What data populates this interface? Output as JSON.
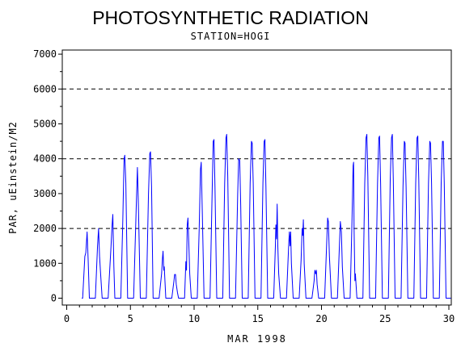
{
  "chart_data": {
    "type": "line",
    "title": "PHOTOSYNTHETIC RADIATION",
    "subtitle": "STATION=HOGI",
    "xlabel": "MAR 1998",
    "ylabel": "PAR, uEinstein/M2",
    "xlim": [
      0,
      30.3
    ],
    "ylim": [
      0,
      7000
    ],
    "x_ticks": [
      0,
      5,
      10,
      15,
      20,
      25,
      30
    ],
    "y_ticks": [
      0,
      1000,
      2000,
      3000,
      4000,
      5000,
      6000,
      7000
    ],
    "reference_lines": [
      2000,
      4000,
      6000
    ],
    "line_color": "#0000ff",
    "grid": "dashed horizontal reference lines at 2000, 4000, 6000",
    "daily_peaks": [
      {
        "day": 1,
        "profile": [
          [
            0.25,
            0
          ],
          [
            0.42,
            1200
          ],
          [
            0.5,
            1300
          ],
          [
            0.6,
            1900
          ],
          [
            0.68,
            1100
          ],
          [
            0.78,
            0
          ]
        ]
      },
      {
        "day": 2,
        "profile": [
          [
            0.25,
            0
          ],
          [
            0.42,
            1500
          ],
          [
            0.5,
            2000
          ],
          [
            0.58,
            1200
          ],
          [
            0.66,
            700
          ],
          [
            0.78,
            0
          ]
        ]
      },
      {
        "day": 3,
        "profile": [
          [
            0.25,
            0
          ],
          [
            0.48,
            1500
          ],
          [
            0.56,
            2100
          ],
          [
            0.62,
            2400
          ],
          [
            0.7,
            900
          ],
          [
            0.78,
            0
          ]
        ]
      },
      {
        "day": 4,
        "profile": [
          [
            0.25,
            0
          ],
          [
            0.4,
            2200
          ],
          [
            0.5,
            4000
          ],
          [
            0.56,
            4100
          ],
          [
            0.64,
            3300
          ],
          [
            0.78,
            0
          ]
        ]
      },
      {
        "day": 5,
        "profile": [
          [
            0.25,
            0
          ],
          [
            0.45,
            2500
          ],
          [
            0.55,
            3750
          ],
          [
            0.62,
            2800
          ],
          [
            0.78,
            0
          ]
        ]
      },
      {
        "day": 6,
        "profile": [
          [
            0.25,
            0
          ],
          [
            0.42,
            3000
          ],
          [
            0.52,
            4150
          ],
          [
            0.58,
            4200
          ],
          [
            0.66,
            3200
          ],
          [
            0.78,
            0
          ]
        ]
      },
      {
        "day": 7,
        "profile": [
          [
            0.25,
            0
          ],
          [
            0.45,
            700
          ],
          [
            0.52,
            1150
          ],
          [
            0.56,
            1350
          ],
          [
            0.62,
            800
          ],
          [
            0.66,
            900
          ],
          [
            0.78,
            0
          ]
        ]
      },
      {
        "day": 8,
        "profile": [
          [
            0.25,
            0
          ],
          [
            0.42,
            500
          ],
          [
            0.47,
            680
          ],
          [
            0.54,
            680
          ],
          [
            0.6,
            400
          ],
          [
            0.7,
            150
          ],
          [
            0.78,
            0
          ]
        ]
      },
      {
        "day": 9,
        "profile": [
          [
            0.25,
            0
          ],
          [
            0.35,
            1050
          ],
          [
            0.4,
            800
          ],
          [
            0.46,
            2100
          ],
          [
            0.52,
            2300
          ],
          [
            0.6,
            1400
          ],
          [
            0.66,
            700
          ],
          [
            0.78,
            0
          ]
        ]
      },
      {
        "day": 10,
        "profile": [
          [
            0.25,
            0
          ],
          [
            0.4,
            2000
          ],
          [
            0.5,
            3700
          ],
          [
            0.56,
            3900
          ],
          [
            0.64,
            2500
          ],
          [
            0.78,
            0
          ]
        ]
      },
      {
        "day": 11,
        "profile": [
          [
            0.25,
            0
          ],
          [
            0.4,
            2800
          ],
          [
            0.5,
            4500
          ],
          [
            0.56,
            4550
          ],
          [
            0.64,
            3200
          ],
          [
            0.78,
            0
          ]
        ]
      },
      {
        "day": 12,
        "profile": [
          [
            0.25,
            0
          ],
          [
            0.4,
            3300
          ],
          [
            0.5,
            4600
          ],
          [
            0.56,
            4700
          ],
          [
            0.64,
            3500
          ],
          [
            0.78,
            0
          ]
        ]
      },
      {
        "day": 13,
        "profile": [
          [
            0.25,
            0
          ],
          [
            0.42,
            3000
          ],
          [
            0.5,
            4000
          ],
          [
            0.58,
            3950
          ],
          [
            0.66,
            2700
          ],
          [
            0.78,
            0
          ]
        ]
      },
      {
        "day": 14,
        "profile": [
          [
            0.25,
            0
          ],
          [
            0.4,
            3300
          ],
          [
            0.5,
            4500
          ],
          [
            0.56,
            4450
          ],
          [
            0.64,
            3300
          ],
          [
            0.78,
            0
          ]
        ]
      },
      {
        "day": 15,
        "profile": [
          [
            0.25,
            0
          ],
          [
            0.4,
            3300
          ],
          [
            0.5,
            4500
          ],
          [
            0.56,
            4550
          ],
          [
            0.64,
            3200
          ],
          [
            0.78,
            0
          ]
        ]
      },
      {
        "day": 16,
        "profile": [
          [
            0.25,
            0
          ],
          [
            0.38,
            1500
          ],
          [
            0.42,
            2100
          ],
          [
            0.47,
            1700
          ],
          [
            0.52,
            2700
          ],
          [
            0.57,
            1500
          ],
          [
            0.64,
            700
          ],
          [
            0.78,
            0
          ]
        ]
      },
      {
        "day": 17,
        "profile": [
          [
            0.25,
            0
          ],
          [
            0.42,
            1500
          ],
          [
            0.48,
            1900
          ],
          [
            0.53,
            1500
          ],
          [
            0.58,
            1900
          ],
          [
            0.64,
            1000
          ],
          [
            0.78,
            0
          ]
        ]
      },
      {
        "day": 18,
        "profile": [
          [
            0.25,
            0
          ],
          [
            0.4,
            1100
          ],
          [
            0.48,
            2000
          ],
          [
            0.53,
            1800
          ],
          [
            0.58,
            2250
          ],
          [
            0.64,
            1000
          ],
          [
            0.78,
            0
          ]
        ]
      },
      {
        "day": 19,
        "profile": [
          [
            0.25,
            0
          ],
          [
            0.42,
            500
          ],
          [
            0.48,
            800
          ],
          [
            0.54,
            700
          ],
          [
            0.6,
            800
          ],
          [
            0.66,
            400
          ],
          [
            0.78,
            0
          ]
        ]
      },
      {
        "day": 20,
        "profile": [
          [
            0.25,
            0
          ],
          [
            0.4,
            1500
          ],
          [
            0.48,
            2300
          ],
          [
            0.54,
            2200
          ],
          [
            0.62,
            1200
          ],
          [
            0.78,
            0
          ]
        ]
      },
      {
        "day": 21,
        "profile": [
          [
            0.25,
            0
          ],
          [
            0.4,
            1400
          ],
          [
            0.48,
            2200
          ],
          [
            0.56,
            1900
          ],
          [
            0.64,
            900
          ],
          [
            0.78,
            0
          ]
        ]
      },
      {
        "day": 22,
        "profile": [
          [
            0.25,
            0
          ],
          [
            0.38,
            2000
          ],
          [
            0.48,
            3800
          ],
          [
            0.52,
            3900
          ],
          [
            0.56,
            2000
          ],
          [
            0.62,
            500
          ],
          [
            0.66,
            700
          ],
          [
            0.78,
            0
          ]
        ]
      },
      {
        "day": 23,
        "profile": [
          [
            0.25,
            0
          ],
          [
            0.4,
            3300
          ],
          [
            0.5,
            4600
          ],
          [
            0.56,
            4700
          ],
          [
            0.64,
            3500
          ],
          [
            0.78,
            0
          ]
        ]
      },
      {
        "day": 24,
        "profile": [
          [
            0.25,
            0
          ],
          [
            0.4,
            3300
          ],
          [
            0.5,
            4600
          ],
          [
            0.56,
            4650
          ],
          [
            0.64,
            3300
          ],
          [
            0.78,
            0
          ]
        ]
      },
      {
        "day": 25,
        "profile": [
          [
            0.25,
            0
          ],
          [
            0.4,
            3400
          ],
          [
            0.5,
            4600
          ],
          [
            0.56,
            4700
          ],
          [
            0.64,
            3400
          ],
          [
            0.78,
            0
          ]
        ]
      },
      {
        "day": 26,
        "profile": [
          [
            0.25,
            0
          ],
          [
            0.4,
            3200
          ],
          [
            0.5,
            4500
          ],
          [
            0.56,
            4450
          ],
          [
            0.64,
            3200
          ],
          [
            0.78,
            0
          ]
        ]
      },
      {
        "day": 27,
        "profile": [
          [
            0.25,
            0
          ],
          [
            0.4,
            3300
          ],
          [
            0.5,
            4600
          ],
          [
            0.56,
            4650
          ],
          [
            0.64,
            3400
          ],
          [
            0.78,
            0
          ]
        ]
      },
      {
        "day": 28,
        "profile": [
          [
            0.25,
            0
          ],
          [
            0.4,
            3300
          ],
          [
            0.5,
            4500
          ],
          [
            0.56,
            4450
          ],
          [
            0.64,
            3300
          ],
          [
            0.78,
            0
          ]
        ]
      },
      {
        "day": 29,
        "profile": [
          [
            0.25,
            0
          ],
          [
            0.4,
            3300
          ],
          [
            0.5,
            4500
          ],
          [
            0.56,
            4500
          ],
          [
            0.64,
            3300
          ],
          [
            0.78,
            0
          ]
        ]
      }
    ],
    "baseline_start": 1.18,
    "baseline_end": 30.15
  }
}
